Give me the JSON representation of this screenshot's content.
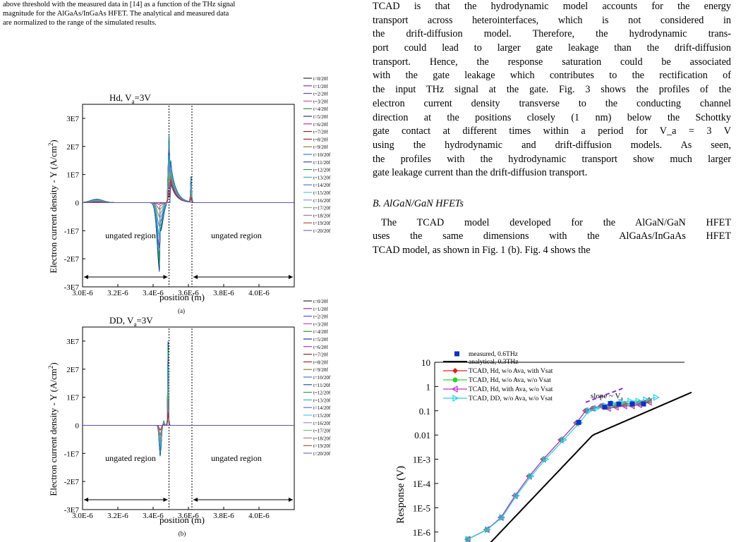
{
  "caption_top": [
    "above threshold with the measured data in [14] as a function of the THz signal",
    "magnitude for the AlGaAs/InGaAs HFET. The analytical and measured data",
    "are normalized to the range of the simulated results."
  ],
  "body_lines": [
    "TCAD is that the hydrodynamic model accounts for the energy",
    "transport across heterointerfaces, which is not considered in",
    "the drift-diffusion model. Therefore, the hydrodynamic trans-",
    "port could lead to larger gate leakage than the drift-diffusion",
    "transport. Hence, the response saturation could be associated",
    "with the gate leakage which contributes to the rectification of",
    "the input THz signal at the gate. Fig. 3 shows the profiles of the",
    "electron current density transverse to the conducting channel",
    "direction at the positions closely (1 nm) below the Schottky",
    "gate contact at different times within a period for V_a = 3 V",
    "using the hydrodynamic and drift-diffusion models. As seen,",
    "the profiles with the hydrodynamic transport show much larger",
    "gate leakage current than the drift-diffusion transport."
  ],
  "section_heading": "B.  AlGaN/GaN HFETs",
  "section_lines": [
    "The TCAD model developed for the AlGaN/GaN HFET",
    "uses the same dimensions with the AlGaAs/InGaAs HFET",
    "TCAD model, as shown in Fig. 1 (b). Fig. 4 shows the"
  ],
  "figure_a": {
    "label": "(a)",
    "panel_title": "Hd, V",
    "panel_title_sub": "a",
    "panel_title_suffix": "=3V",
    "ylabel": "Electron current density - Y (A/cm",
    "ylabel_sup": "2",
    "ylabel_end": ")",
    "xlabel": "position (m)",
    "region_left": "ungated region",
    "region_right": "ungated region"
  },
  "figure_b": {
    "label": "(b)",
    "panel_title": "DD, V",
    "panel_title_sub": "a",
    "panel_title_suffix": "=3V",
    "ylabel": "Electron current density - Y (A/cm",
    "ylabel_sup": "2",
    "ylabel_end": ")",
    "xlabel": "position (m)",
    "region_left": "ungated region",
    "region_right": "ungated region"
  },
  "legend_times": [
    "t=0/20f",
    "t=1/20f",
    "t=2/20f",
    "t=3/20f",
    "t=4/20f",
    "t=5/20f",
    "t=6/20f",
    "t=7/20f",
    "t=8/20f",
    "t=9/20f",
    "t=10/20f",
    "t=11/20f",
    "t=12/20f",
    "t=13/20f",
    "t=14/20f",
    "t=15/20f",
    "t=16/20f",
    "t=17/20f",
    "t=18/20f",
    "t=19/20f",
    "t=20/20f"
  ],
  "legend_colors": [
    "#000000",
    "#6a0dad",
    "#2b2bff",
    "#c03090",
    "#0a7a0a",
    "#000080",
    "#b000b0",
    "#7a0000",
    "#8b0000",
    "#6b6b00",
    "#1060c0",
    "#0030a0",
    "#0a8a3a",
    "#20a0a0",
    "#5050d0",
    "#30c0d0",
    "#8080c0",
    "#60b060",
    "#a06080",
    "#9a2a2a",
    "#6050b0"
  ],
  "chart_data": [
    {
      "type": "line",
      "title": "Hd, Va=3V",
      "xlabel": "position (m)",
      "ylabel": "Electron current density - Y (A/cm2)",
      "xlim": [
        3e-06,
        4.2e-06
      ],
      "ylim": [
        -30000000.0,
        35000000.0
      ],
      "xticks": [
        "3.0E-6",
        "3.2E-6",
        "3.4E-6",
        "3.6E-6",
        "3.8E-6",
        "4.0E-6"
      ],
      "yticks": [
        "-3E7",
        "-2E7",
        "-1E7",
        "0",
        "1E7",
        "2E7",
        "3E7"
      ],
      "legend": "right",
      "series_note": "t=0/20f ... t=20/20f"
    },
    {
      "type": "line",
      "title": "DD, Va=3V",
      "xlabel": "position (m)",
      "ylabel": "Electron current density - Y (A/cm2)",
      "xlim": [
        3e-06,
        4.2e-06
      ],
      "ylim": [
        -30000000.0,
        35000000.0
      ],
      "xticks": [
        "3.0E-6",
        "3.2E-6",
        "3.4E-6",
        "3.6E-6",
        "3.8E-6",
        "4.0E-6"
      ],
      "yticks": [
        "-3E7",
        "-2E7",
        "-1E7",
        "0",
        "1E7",
        "2E7",
        "3E7"
      ],
      "legend": "right"
    },
    {
      "type": "scatter",
      "ylabel": "Response (V)",
      "yticks": [
        "10",
        "1",
        "0.1",
        "0.01",
        "1E-3",
        "1E-4",
        "1E-5",
        "1E-6"
      ],
      "ylim_log": [
        1e-06,
        10
      ],
      "annotation": "slope ~ V",
      "annotation_sub": "a",
      "legend": "top-left",
      "series": [
        {
          "name": "measured, 0.6THz",
          "color": "#1030c0",
          "marker": "square"
        },
        {
          "name": "analytical, 0.3THz",
          "color": "#000000",
          "marker": "line"
        },
        {
          "name": "TCAD, Hd, w/o Ava, with Vsat",
          "color": "#e02020",
          "marker": "diamond"
        },
        {
          "name": "TCAD, Hd, w/o Ava, w/o Vsat",
          "color": "#30d030",
          "marker": "circle"
        },
        {
          "name": "TCAD, Hd, with Ava, w/o Vsat",
          "color": "#c030c0",
          "marker": "triangle-left"
        },
        {
          "name": "TCAD, DD, w/o Ava, w/o Vsat",
          "color": "#20d0e0",
          "marker": "triangle-right"
        }
      ]
    }
  ]
}
